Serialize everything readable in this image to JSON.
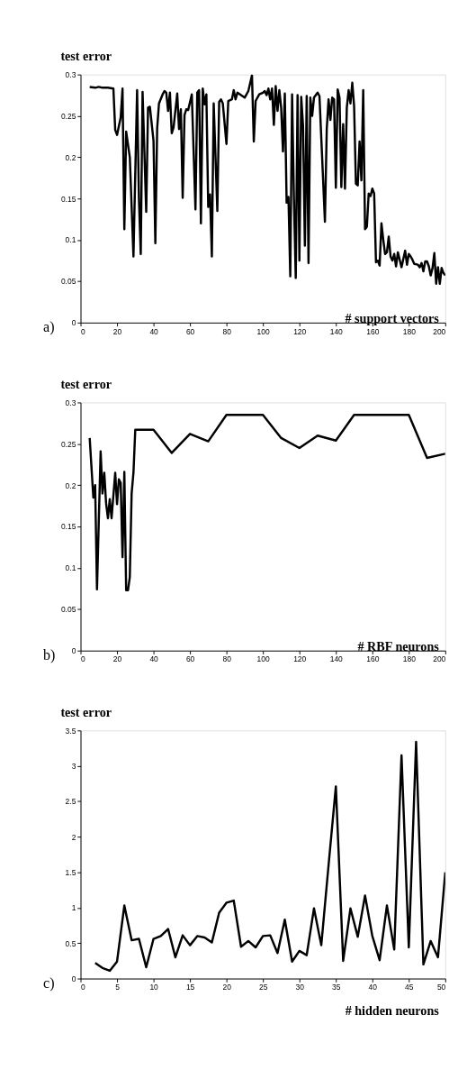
{
  "chart_data": [
    {
      "type": "line",
      "ylabel": "test error",
      "xlabel": "# support vectors",
      "annotations": [
        "a)"
      ],
      "xlim": [
        0,
        200
      ],
      "ylim": [
        0,
        0.3
      ],
      "xticks": [
        0,
        20,
        40,
        60,
        80,
        100,
        120,
        140,
        160,
        180,
        200
      ],
      "yticks": [
        0,
        0.05,
        0.1,
        0.15,
        0.2,
        0.25,
        0.3
      ],
      "grid": false,
      "marker": "none",
      "line_style": "solid",
      "series": [
        {
          "color": "#000000",
          "x": [
            5,
            8,
            10,
            12,
            15,
            18,
            19,
            20,
            22,
            23,
            24,
            25,
            27,
            29,
            31,
            32,
            33,
            34,
            36,
            37,
            38,
            40,
            41,
            42,
            43,
            45,
            46,
            47,
            48,
            49,
            50,
            51,
            53,
            54,
            55,
            56,
            57,
            58,
            59,
            61,
            63,
            64,
            65,
            66,
            67,
            68,
            69,
            70,
            71,
            72,
            73,
            75,
            76,
            77,
            78,
            80,
            81,
            82,
            83,
            84,
            85,
            86,
            88,
            90,
            92,
            94,
            95,
            96,
            98,
            100,
            101,
            102,
            103,
            104,
            105,
            106,
            107,
            108,
            109,
            110,
            111,
            112,
            113,
            114,
            115,
            116,
            117,
            118,
            119,
            120,
            121,
            122,
            123,
            124,
            125,
            126,
            127,
            128,
            130,
            131,
            134,
            135,
            136,
            137,
            138,
            139,
            140,
            141,
            142,
            143,
            144,
            145,
            146,
            147,
            148,
            149,
            150,
            151,
            152,
            153,
            154,
            155,
            156,
            157,
            158,
            159,
            160,
            161,
            162,
            163,
            164,
            165,
            166,
            167,
            168,
            169,
            170,
            171,
            172,
            173,
            174,
            176,
            178,
            179,
            180,
            181,
            182,
            183,
            185,
            186,
            187,
            188,
            189,
            190,
            191,
            192,
            193,
            194,
            195,
            196,
            197,
            198,
            199,
            200
          ],
          "values": [
            0.285,
            0.284,
            0.285,
            0.284,
            0.284,
            0.283,
            0.233,
            0.227,
            0.248,
            0.283,
            0.113,
            0.231,
            0.2,
            0.08,
            0.281,
            0.15,
            0.083,
            0.279,
            0.134,
            0.26,
            0.261,
            0.22,
            0.096,
            0.235,
            0.265,
            0.276,
            0.28,
            0.278,
            0.256,
            0.278,
            0.229,
            0.236,
            0.277,
            0.234,
            0.258,
            0.151,
            0.251,
            0.258,
            0.257,
            0.276,
            0.137,
            0.278,
            0.281,
            0.12,
            0.283,
            0.264,
            0.276,
            0.14,
            0.155,
            0.08,
            0.265,
            0.135,
            0.267,
            0.27,
            0.265,
            0.216,
            0.268,
            0.269,
            0.27,
            0.281,
            0.27,
            0.278,
            0.275,
            0.272,
            0.28,
            0.299,
            0.219,
            0.268,
            0.276,
            0.278,
            0.28,
            0.275,
            0.283,
            0.27,
            0.283,
            0.239,
            0.286,
            0.256,
            0.281,
            0.26,
            0.207,
            0.277,
            0.145,
            0.152,
            0.056,
            0.276,
            0.15,
            0.054,
            0.275,
            0.075,
            0.273,
            0.238,
            0.093,
            0.274,
            0.072,
            0.272,
            0.25,
            0.272,
            0.278,
            0.274,
            0.122,
            0.234,
            0.27,
            0.245,
            0.272,
            0.27,
            0.163,
            0.282,
            0.272,
            0.164,
            0.24,
            0.162,
            0.26,
            0.281,
            0.265,
            0.29,
            0.262,
            0.168,
            0.166,
            0.219,
            0.172,
            0.281,
            0.113,
            0.116,
            0.156,
            0.153,
            0.162,
            0.156,
            0.073,
            0.075,
            0.069,
            0.12,
            0.1,
            0.083,
            0.085,
            0.104,
            0.08,
            0.075,
            0.083,
            0.068,
            0.085,
            0.067,
            0.087,
            0.07,
            0.083,
            0.08,
            0.076,
            0.071,
            0.07,
            0.067,
            0.072,
            0.062,
            0.074,
            0.074,
            0.068,
            0.057,
            0.066,
            0.084,
            0.047,
            0.067,
            0.047,
            0.066,
            0.06,
            0.057
          ]
        }
      ]
    },
    {
      "type": "line",
      "ylabel": "test error",
      "xlabel": "# RBF neurons",
      "annotations": [
        "b)"
      ],
      "xlim": [
        0,
        200
      ],
      "ylim": [
        0,
        0.3
      ],
      "xticks": [
        0,
        20,
        40,
        60,
        80,
        100,
        120,
        140,
        160,
        180,
        200
      ],
      "yticks": [
        0,
        0.05,
        0.1,
        0.15,
        0.2,
        0.25,
        0.3
      ],
      "grid": false,
      "marker": "none",
      "line_style": "solid",
      "series": [
        {
          "color": "#000000",
          "x": [
            5,
            7,
            8,
            9,
            11,
            12,
            13,
            14,
            15,
            16,
            17,
            19,
            20,
            21,
            22,
            23,
            24,
            25,
            26,
            27,
            28,
            29,
            30,
            40,
            50,
            60,
            70,
            80,
            100,
            110,
            120,
            130,
            140,
            150,
            180,
            190,
            200
          ],
          "values": [
            0.257,
            0.185,
            0.2,
            0.074,
            0.241,
            0.19,
            0.215,
            0.178,
            0.16,
            0.183,
            0.16,
            0.215,
            0.177,
            0.207,
            0.203,
            0.113,
            0.216,
            0.073,
            0.073,
            0.089,
            0.19,
            0.215,
            0.267,
            0.267,
            0.239,
            0.262,
            0.253,
            0.285,
            0.285,
            0.257,
            0.245,
            0.26,
            0.254,
            0.285,
            0.285,
            0.233,
            0.238
          ]
        }
      ]
    },
    {
      "type": "line",
      "ylabel": "test error",
      "xlabel": "# hidden neurons",
      "annotations": [
        "c)"
      ],
      "xlim": [
        0,
        50
      ],
      "ylim": [
        0,
        3.5
      ],
      "xticks": [
        0,
        5,
        10,
        15,
        20,
        25,
        30,
        35,
        40,
        45,
        50
      ],
      "yticks": [
        0,
        0.5,
        1,
        1.5,
        2,
        2.5,
        3,
        3.5
      ],
      "grid": false,
      "marker": "none",
      "line_style": "solid",
      "series": [
        {
          "color": "#000000",
          "x": [
            2,
            3,
            4,
            5,
            6,
            7,
            8,
            9,
            10,
            11,
            12,
            13,
            14,
            15,
            16,
            17,
            18,
            19,
            20,
            21,
            22,
            23,
            24,
            25,
            26,
            27,
            28,
            29,
            30,
            31,
            32,
            33,
            34,
            35,
            36,
            37,
            38,
            39,
            40,
            41,
            42,
            43,
            44,
            45,
            46,
            47,
            48,
            49,
            50
          ],
          "values": [
            0.22,
            0.15,
            0.11,
            0.24,
            1.03,
            0.54,
            0.56,
            0.16,
            0.56,
            0.6,
            0.7,
            0.3,
            0.61,
            0.47,
            0.6,
            0.58,
            0.51,
            0.93,
            1.07,
            1.1,
            0.45,
            0.53,
            0.44,
            0.6,
            0.61,
            0.36,
            0.83,
            0.24,
            0.39,
            0.33,
            0.99,
            0.47,
            1.6,
            2.71,
            0.25,
            0.99,
            0.59,
            1.17,
            0.6,
            0.26,
            1.03,
            0.41,
            3.15,
            0.44,
            3.34,
            0.2,
            0.53,
            0.3,
            1.5
          ]
        }
      ]
    }
  ]
}
